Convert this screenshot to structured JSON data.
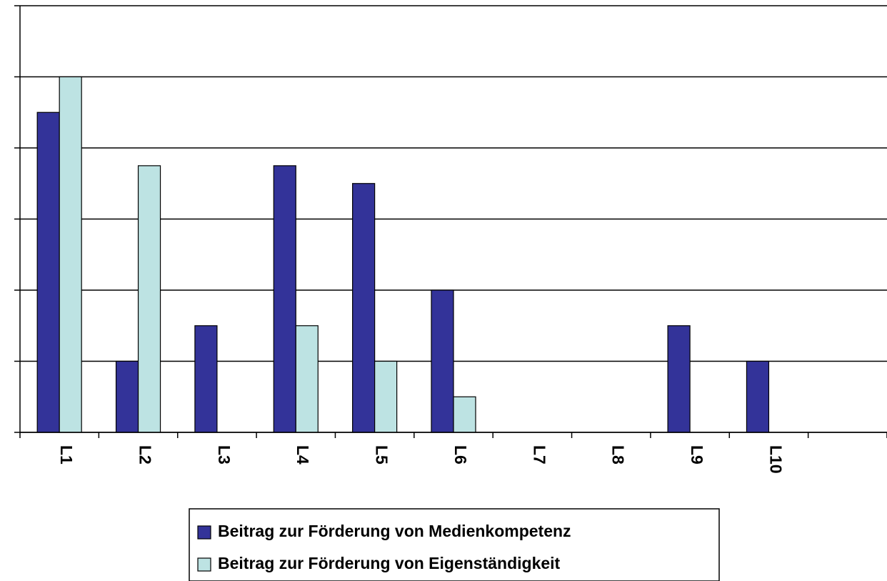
{
  "chart_data": {
    "type": "bar",
    "categories": [
      "L1",
      "L2",
      "L3",
      "L4",
      "L5",
      "L6",
      "L7",
      "L8",
      "L9",
      "L10",
      null
    ],
    "series": [
      {
        "name": "Beitrag zur Förderung von Medienkompetenz",
        "color": "#333399",
        "values": [
          18,
          4,
          6,
          15,
          14,
          8,
          0,
          0,
          6,
          4,
          null
        ]
      },
      {
        "name": "Beitrag zur Förderung von Eigenständigkeit",
        "color": "#bde3e3",
        "values": [
          20,
          15,
          0,
          6,
          4,
          2,
          0,
          0,
          0,
          0,
          null
        ]
      }
    ],
    "ylim": [
      0,
      24
    ],
    "yticks": [
      0,
      4,
      8,
      12,
      16,
      20,
      24
    ],
    "grid": true,
    "legend": "bottom"
  }
}
